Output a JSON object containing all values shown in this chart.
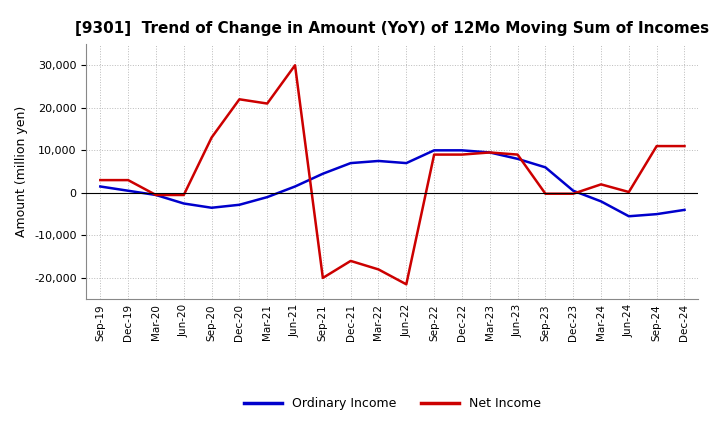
{
  "title": "[9301]  Trend of Change in Amount (YoY) of 12Mo Moving Sum of Incomes",
  "ylabel": "Amount (million yen)",
  "ylim": [
    -25000,
    35000
  ],
  "yticks": [
    -20000,
    -10000,
    0,
    10000,
    20000,
    30000
  ],
  "background_color": "#ffffff",
  "grid_color": "#bbbbbb",
  "labels": [
    "Sep-19",
    "Dec-19",
    "Mar-20",
    "Jun-20",
    "Sep-20",
    "Dec-20",
    "Mar-21",
    "Jun-21",
    "Sep-21",
    "Dec-21",
    "Mar-22",
    "Jun-22",
    "Sep-22",
    "Dec-22",
    "Mar-23",
    "Jun-23",
    "Sep-23",
    "Dec-23",
    "Mar-24",
    "Jun-24",
    "Sep-24",
    "Dec-24"
  ],
  "ordinary_income": [
    1500,
    500,
    -500,
    -2500,
    -3500,
    -2800,
    -1000,
    1500,
    4500,
    7000,
    7500,
    7000,
    10000,
    10000,
    9500,
    8000,
    6000,
    500,
    -2000,
    -5500,
    -5000,
    -4000
  ],
  "net_income": [
    3000,
    3000,
    -500,
    -500,
    13000,
    22000,
    21000,
    30000,
    -20000,
    -16000,
    -18000,
    -21500,
    9000,
    9000,
    9500,
    9000,
    -200,
    -200,
    2000,
    200,
    11000,
    11000
  ],
  "ordinary_color": "#0000cc",
  "net_color": "#cc0000",
  "line_width": 1.8
}
